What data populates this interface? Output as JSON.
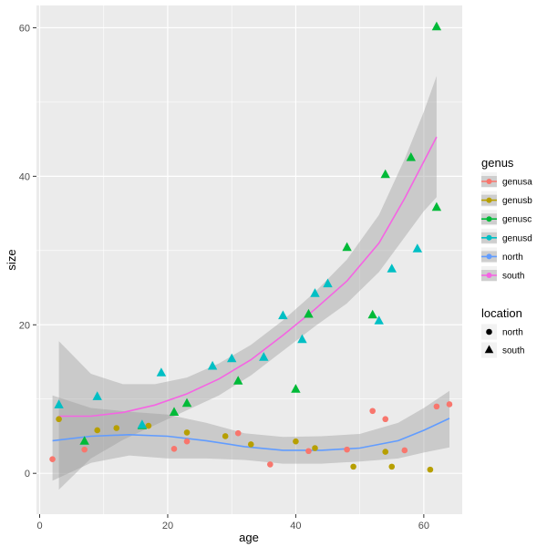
{
  "chart_data": {
    "type": "scatter",
    "xlabel": "age",
    "ylabel": "size",
    "xlim": [
      -0.5,
      66
    ],
    "ylim": [
      -5.5,
      63
    ],
    "x_ticks": [
      0,
      20,
      40,
      60
    ],
    "y_ticks": [
      0,
      20,
      40,
      60
    ],
    "grid": true,
    "background": "#ebebeb",
    "colors": {
      "genusa": "#f8766d",
      "genusb": "#b79f00",
      "genusc": "#00ba38",
      "genusd": "#00bfc4",
      "north": "#619cff",
      "south": "#f564e3"
    },
    "points": [
      {
        "genus": "genusa",
        "location": "north",
        "x": 2,
        "y": 1.9
      },
      {
        "genus": "genusa",
        "location": "north",
        "x": 7,
        "y": 3.2
      },
      {
        "genus": "genusa",
        "location": "north",
        "x": 21,
        "y": 3.3
      },
      {
        "genus": "genusa",
        "location": "north",
        "x": 23,
        "y": 4.3
      },
      {
        "genus": "genusa",
        "location": "north",
        "x": 31,
        "y": 5.4
      },
      {
        "genus": "genusa",
        "location": "north",
        "x": 36,
        "y": 1.2
      },
      {
        "genus": "genusa",
        "location": "north",
        "x": 42,
        "y": 3.0
      },
      {
        "genus": "genusa",
        "location": "north",
        "x": 48,
        "y": 3.2
      },
      {
        "genus": "genusa",
        "location": "north",
        "x": 52,
        "y": 8.4
      },
      {
        "genus": "genusa",
        "location": "north",
        "x": 54,
        "y": 7.3
      },
      {
        "genus": "genusa",
        "location": "north",
        "x": 57,
        "y": 3.1
      },
      {
        "genus": "genusa",
        "location": "north",
        "x": 62,
        "y": 9.0
      },
      {
        "genus": "genusa",
        "location": "north",
        "x": 64,
        "y": 9.3
      },
      {
        "genus": "genusb",
        "location": "north",
        "x": 3,
        "y": 7.3
      },
      {
        "genus": "genusb",
        "location": "north",
        "x": 9,
        "y": 5.8
      },
      {
        "genus": "genusb",
        "location": "north",
        "x": 12,
        "y": 6.1
      },
      {
        "genus": "genusb",
        "location": "north",
        "x": 17,
        "y": 6.4
      },
      {
        "genus": "genusb",
        "location": "north",
        "x": 23,
        "y": 5.5
      },
      {
        "genus": "genusb",
        "location": "north",
        "x": 29,
        "y": 5.0
      },
      {
        "genus": "genusb",
        "location": "north",
        "x": 33,
        "y": 3.9
      },
      {
        "genus": "genusb",
        "location": "north",
        "x": 40,
        "y": 4.3
      },
      {
        "genus": "genusb",
        "location": "north",
        "x": 43,
        "y": 3.4
      },
      {
        "genus": "genusb",
        "location": "north",
        "x": 49,
        "y": 0.9
      },
      {
        "genus": "genusb",
        "location": "north",
        "x": 54,
        "y": 2.9
      },
      {
        "genus": "genusb",
        "location": "north",
        "x": 55,
        "y": 0.9
      },
      {
        "genus": "genusb",
        "location": "north",
        "x": 61,
        "y": 0.5
      },
      {
        "genus": "genusc",
        "location": "south",
        "x": 7,
        "y": 4.3
      },
      {
        "genus": "genusc",
        "location": "south",
        "x": 16,
        "y": 6.4
      },
      {
        "genus": "genusc",
        "location": "south",
        "x": 21,
        "y": 8.2
      },
      {
        "genus": "genusc",
        "location": "south",
        "x": 23,
        "y": 9.4
      },
      {
        "genus": "genusc",
        "location": "south",
        "x": 31,
        "y": 12.4
      },
      {
        "genus": "genusc",
        "location": "south",
        "x": 40,
        "y": 11.3
      },
      {
        "genus": "genusc",
        "location": "south",
        "x": 42,
        "y": 21.4
      },
      {
        "genus": "genusc",
        "location": "south",
        "x": 48,
        "y": 30.4
      },
      {
        "genus": "genusc",
        "location": "south",
        "x": 52,
        "y": 21.3
      },
      {
        "genus": "genusc",
        "location": "south",
        "x": 54,
        "y": 40.2
      },
      {
        "genus": "genusc",
        "location": "south",
        "x": 58,
        "y": 42.5
      },
      {
        "genus": "genusc",
        "location": "south",
        "x": 62,
        "y": 35.8
      },
      {
        "genus": "genusc",
        "location": "south",
        "x": 62,
        "y": 60.1
      },
      {
        "genus": "genusd",
        "location": "south",
        "x": 3,
        "y": 9.2
      },
      {
        "genus": "genusd",
        "location": "south",
        "x": 9,
        "y": 10.3
      },
      {
        "genus": "genusd",
        "location": "south",
        "x": 16,
        "y": 6.5
      },
      {
        "genus": "genusd",
        "location": "south",
        "x": 19,
        "y": 13.5
      },
      {
        "genus": "genusd",
        "location": "south",
        "x": 27,
        "y": 14.4
      },
      {
        "genus": "genusd",
        "location": "south",
        "x": 30,
        "y": 15.4
      },
      {
        "genus": "genusd",
        "location": "south",
        "x": 35,
        "y": 15.6
      },
      {
        "genus": "genusd",
        "location": "south",
        "x": 38,
        "y": 21.2
      },
      {
        "genus": "genusd",
        "location": "south",
        "x": 41,
        "y": 18.0
      },
      {
        "genus": "genusd",
        "location": "south",
        "x": 43,
        "y": 24.2
      },
      {
        "genus": "genusd",
        "location": "south",
        "x": 45,
        "y": 25.5
      },
      {
        "genus": "genusd",
        "location": "south",
        "x": 53,
        "y": 20.5
      },
      {
        "genus": "genusd",
        "location": "south",
        "x": 55,
        "y": 27.5
      },
      {
        "genus": "genusd",
        "location": "south",
        "x": 59,
        "y": 30.2
      }
    ],
    "smooth": [
      {
        "name": "north",
        "x": [
          2,
          8,
          14,
          20,
          26,
          32,
          38,
          44,
          50,
          56,
          60,
          64
        ],
        "y": [
          4.4,
          5.0,
          5.2,
          5.0,
          4.4,
          3.6,
          3.1,
          3.1,
          3.4,
          4.4,
          5.8,
          7.4
        ],
        "lo": [
          -1.0,
          1.4,
          2.4,
          2.0,
          2.0,
          1.8,
          1.3,
          1.3,
          1.6,
          2.0,
          2.8,
          3.5
        ],
        "hi": [
          10.5,
          8.8,
          8.3,
          7.9,
          6.8,
          5.4,
          4.9,
          5.0,
          5.3,
          6.8,
          8.8,
          11.1
        ]
      },
      {
        "name": "south",
        "x": [
          3,
          8,
          13,
          18,
          23,
          28,
          33,
          38,
          43,
          48,
          53,
          57,
          60,
          62
        ],
        "y": [
          7.7,
          7.7,
          8.2,
          9.2,
          10.7,
          12.7,
          15.3,
          18.6,
          22.1,
          25.9,
          31.0,
          37.0,
          42.0,
          45.3
        ],
        "lo": [
          -2.2,
          2.0,
          4.5,
          6.5,
          8.5,
          10.5,
          13.2,
          16.5,
          19.8,
          22.9,
          27.1,
          31.8,
          35.3,
          37.2
        ],
        "hi": [
          17.8,
          13.4,
          12.0,
          12.0,
          12.9,
          14.8,
          17.3,
          20.6,
          24.4,
          28.8,
          34.8,
          42.3,
          48.7,
          53.5
        ]
      }
    ]
  },
  "legend_genus": {
    "title": "genus",
    "items": [
      {
        "label": "genusa",
        "color": "#f8766d"
      },
      {
        "label": "genusb",
        "color": "#b79f00"
      },
      {
        "label": "genusc",
        "color": "#00ba38"
      },
      {
        "label": "genusd",
        "color": "#00bfc4"
      },
      {
        "label": "north",
        "color": "#619cff"
      },
      {
        "label": "south",
        "color": "#f564e3"
      }
    ]
  },
  "legend_location": {
    "title": "location",
    "items": [
      {
        "label": "north",
        "shape": "circle"
      },
      {
        "label": "south",
        "shape": "triangle"
      }
    ]
  }
}
